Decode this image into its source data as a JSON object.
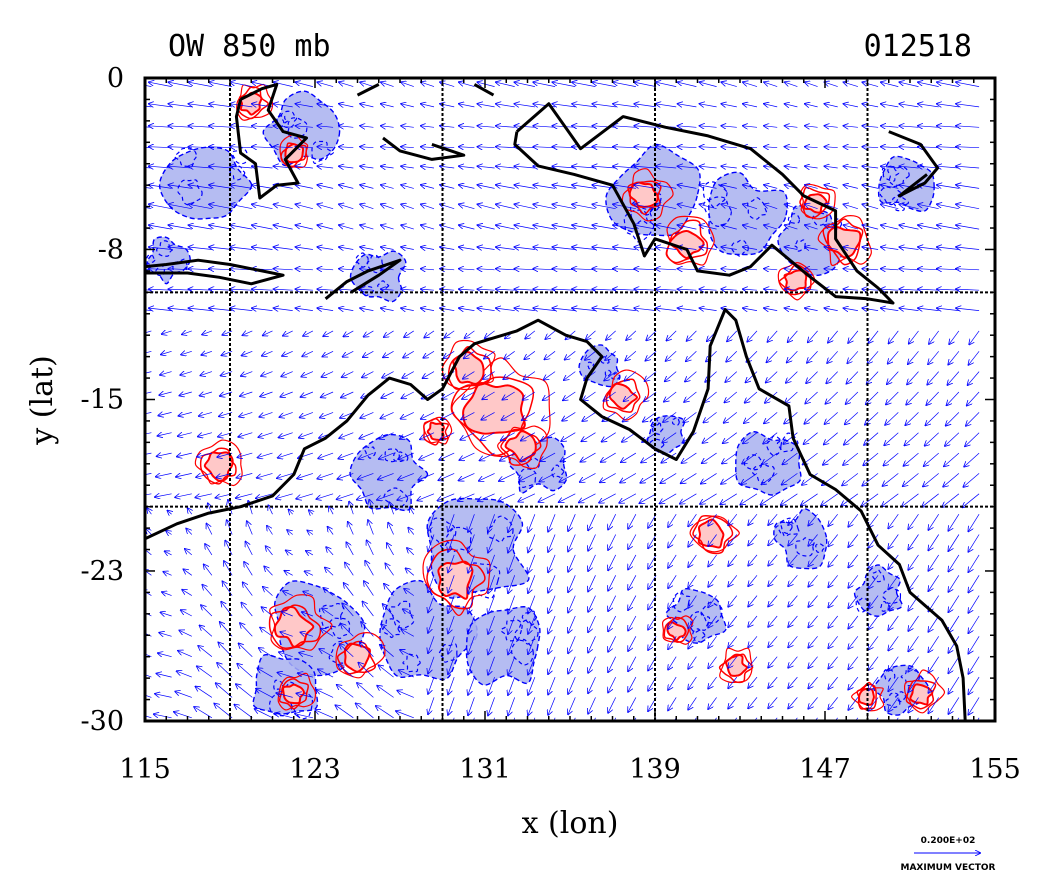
{
  "chart_data": {
    "type": "contour",
    "title_left": "OW 850 mb",
    "title_right": "012518",
    "xlabel": "x (lon)",
    "ylabel": "y (lat)",
    "xlim": [
      115,
      155
    ],
    "ylim": [
      -30,
      0
    ],
    "x_ticks": [
      "115",
      "123",
      "131",
      "139",
      "147",
      "155"
    ],
    "y_ticks": [
      "0",
      "-8",
      "-15",
      "-23",
      "-30"
    ],
    "x_tick_values": [
      115,
      123,
      131,
      139,
      147,
      155
    ],
    "y_tick_values": [
      0,
      -8,
      -15,
      -23,
      -30
    ],
    "grid_lon": [
      119,
      129,
      139,
      149
    ],
    "grid_lat": [
      -10,
      -20
    ],
    "reference_vector": {
      "value_label": "0.200E+02",
      "label": "MAXIMUM VECTOR"
    },
    "colors": {
      "positive_contour": "#ff0000",
      "positive_fill": "#ffc8c8",
      "negative_contour": "#0000ff",
      "negative_fill": "#a8b0f0",
      "vector": "#0000ff",
      "coastline": "#000000"
    },
    "positive_regions": [
      {
        "lon": 131.5,
        "lat": -15.5,
        "r": 1.3
      },
      {
        "lon": 130.2,
        "lat": -13.6,
        "r": 0.7
      },
      {
        "lon": 132.7,
        "lat": -17.2,
        "r": 0.6
      },
      {
        "lon": 129.6,
        "lat": -23.4,
        "r": 0.9
      },
      {
        "lon": 122.0,
        "lat": -25.6,
        "r": 0.8
      },
      {
        "lon": 125.0,
        "lat": -27.0,
        "r": 0.6
      },
      {
        "lon": 122.0,
        "lat": -28.7,
        "r": 0.5
      },
      {
        "lon": 118.5,
        "lat": -18.1,
        "r": 0.6
      },
      {
        "lon": 147.9,
        "lat": -7.6,
        "r": 0.7
      },
      {
        "lon": 145.6,
        "lat": -9.5,
        "r": 0.5
      },
      {
        "lon": 141.7,
        "lat": -21.3,
        "r": 0.6
      },
      {
        "lon": 137.5,
        "lat": -14.9,
        "r": 0.6
      },
      {
        "lon": 142.8,
        "lat": -27.5,
        "r": 0.5
      },
      {
        "lon": 140.0,
        "lat": -25.8,
        "r": 0.4
      },
      {
        "lon": 138.5,
        "lat": -5.5,
        "r": 0.6
      },
      {
        "lon": 140.5,
        "lat": -7.7,
        "r": 0.7
      },
      {
        "lon": 146.5,
        "lat": -5.8,
        "r": 0.5
      },
      {
        "lon": 151.5,
        "lat": -28.7,
        "r": 0.5
      },
      {
        "lon": 149.0,
        "lat": -28.9,
        "r": 0.4
      },
      {
        "lon": 120.0,
        "lat": -1.2,
        "r": 0.5
      },
      {
        "lon": 122.0,
        "lat": -3.5,
        "r": 0.4
      },
      {
        "lon": 128.7,
        "lat": -16.5,
        "r": 0.4
      }
    ],
    "negative_regions": [
      {
        "lon": 130.6,
        "lat": -22.0,
        "r": 2.4
      },
      {
        "lon": 128.0,
        "lat": -26.0,
        "r": 2.2
      },
      {
        "lon": 123.0,
        "lat": -25.5,
        "r": 2.0
      },
      {
        "lon": 121.5,
        "lat": -28.5,
        "r": 1.5
      },
      {
        "lon": 132.0,
        "lat": -26.5,
        "r": 1.8
      },
      {
        "lon": 126.5,
        "lat": -18.5,
        "r": 1.6
      },
      {
        "lon": 133.5,
        "lat": -18.0,
        "r": 1.3
      },
      {
        "lon": 118.0,
        "lat": -5.0,
        "r": 2.0
      },
      {
        "lon": 122.5,
        "lat": -2.5,
        "r": 1.6
      },
      {
        "lon": 126.0,
        "lat": -9.3,
        "r": 1.2
      },
      {
        "lon": 139.0,
        "lat": -5.5,
        "r": 2.0
      },
      {
        "lon": 143.0,
        "lat": -6.5,
        "r": 2.0
      },
      {
        "lon": 146.5,
        "lat": -7.5,
        "r": 1.5
      },
      {
        "lon": 144.5,
        "lat": -18.0,
        "r": 1.5
      },
      {
        "lon": 146.0,
        "lat": -21.5,
        "r": 1.3
      },
      {
        "lon": 141.0,
        "lat": -25.0,
        "r": 1.4
      },
      {
        "lon": 149.5,
        "lat": -24.0,
        "r": 1.1
      },
      {
        "lon": 150.5,
        "lat": -28.5,
        "r": 1.2
      },
      {
        "lon": 151.0,
        "lat": -5.0,
        "r": 1.3
      },
      {
        "lon": 136.5,
        "lat": -13.5,
        "r": 0.9
      },
      {
        "lon": 139.5,
        "lat": -16.5,
        "r": 0.9
      },
      {
        "lon": 116.0,
        "lat": -8.5,
        "r": 1.0
      }
    ],
    "coastline": [
      [
        [
          115.0,
          -21.5
        ],
        [
          116.5,
          -20.8
        ],
        [
          118.0,
          -20.3
        ],
        [
          119.5,
          -20.0
        ],
        [
          121.0,
          -19.5
        ],
        [
          122.0,
          -18.5
        ],
        [
          122.5,
          -17.3
        ],
        [
          123.5,
          -16.8
        ],
        [
          124.5,
          -16.0
        ],
        [
          125.5,
          -14.8
        ],
        [
          126.5,
          -14.0
        ],
        [
          127.5,
          -14.3
        ],
        [
          128.3,
          -15.0
        ],
        [
          129.0,
          -14.5
        ],
        [
          129.8,
          -13.0
        ],
        [
          130.5,
          -12.4
        ],
        [
          131.5,
          -12.1
        ],
        [
          132.5,
          -11.8
        ],
        [
          133.5,
          -11.3
        ],
        [
          134.8,
          -12.0
        ],
        [
          135.8,
          -12.3
        ],
        [
          136.5,
          -13.0
        ],
        [
          135.8,
          -14.0
        ],
        [
          135.5,
          -15.0
        ],
        [
          136.5,
          -15.8
        ],
        [
          137.8,
          -16.4
        ],
        [
          139.0,
          -17.3
        ],
        [
          140.0,
          -17.8
        ],
        [
          140.8,
          -16.5
        ],
        [
          141.5,
          -14.5
        ],
        [
          141.6,
          -12.5
        ],
        [
          142.3,
          -10.8
        ],
        [
          142.8,
          -11.3
        ],
        [
          143.3,
          -13.0
        ],
        [
          143.9,
          -14.5
        ],
        [
          145.3,
          -15.3
        ],
        [
          145.5,
          -16.8
        ],
        [
          146.3,
          -18.5
        ],
        [
          147.5,
          -19.2
        ],
        [
          148.7,
          -20.2
        ],
        [
          149.5,
          -21.8
        ],
        [
          150.5,
          -22.7
        ],
        [
          151.0,
          -24.0
        ],
        [
          152.5,
          -25.3
        ],
        [
          153.2,
          -26.5
        ],
        [
          153.5,
          -28.0
        ],
        [
          153.6,
          -30.0
        ]
      ],
      [
        [
          132.5,
          -2.5
        ],
        [
          134.0,
          -1.2
        ],
        [
          135.5,
          -3.3
        ],
        [
          137.5,
          -1.8
        ],
        [
          139.5,
          -2.3
        ],
        [
          141.5,
          -2.7
        ],
        [
          143.5,
          -3.3
        ],
        [
          145.0,
          -4.5
        ],
        [
          146.0,
          -5.5
        ],
        [
          147.5,
          -6.2
        ],
        [
          147.5,
          -7.5
        ],
        [
          148.5,
          -9.0
        ],
        [
          149.5,
          -9.8
        ],
        [
          150.2,
          -10.5
        ],
        [
          149.0,
          -10.3
        ],
        [
          147.5,
          -10.2
        ],
        [
          146.2,
          -9.2
        ],
        [
          144.5,
          -7.8
        ],
        [
          143.5,
          -8.8
        ],
        [
          142.5,
          -9.2
        ],
        [
          141.0,
          -9.0
        ],
        [
          140.5,
          -8.0
        ],
        [
          139.0,
          -7.5
        ],
        [
          138.5,
          -8.3
        ],
        [
          138.0,
          -6.8
        ],
        [
          137.0,
          -5.0
        ],
        [
          135.2,
          -4.5
        ],
        [
          133.5,
          -4.1
        ],
        [
          132.4,
          -3.1
        ],
        [
          132.5,
          -2.5
        ]
      ],
      [
        [
          150.0,
          -2.5
        ],
        [
          151.5,
          -3.1
        ],
        [
          152.3,
          -4.2
        ],
        [
          151.7,
          -4.9
        ],
        [
          150.5,
          -5.5
        ],
        [
          151.8,
          -4.5
        ]
      ],
      [
        [
          119.5,
          -1.0
        ],
        [
          120.5,
          -0.5
        ],
        [
          121.2,
          -0.3
        ],
        [
          120.8,
          -1.5
        ],
        [
          121.5,
          -2.5
        ],
        [
          122.6,
          -2.8
        ],
        [
          121.6,
          -3.8
        ],
        [
          122.2,
          -4.9
        ],
        [
          121.2,
          -5.0
        ],
        [
          120.4,
          -5.6
        ],
        [
          120.2,
          -4.0
        ],
        [
          119.5,
          -3.5
        ],
        [
          119.3,
          -1.8
        ],
        [
          119.5,
          -1.0
        ]
      ],
      [
        [
          115.0,
          -8.8
        ],
        [
          116.0,
          -8.7
        ],
        [
          117.5,
          -8.5
        ],
        [
          119.0,
          -8.7
        ],
        [
          120.5,
          -9.0
        ],
        [
          121.5,
          -9.2
        ],
        [
          120.0,
          -9.6
        ],
        [
          118.5,
          -9.3
        ],
        [
          117.0,
          -9.1
        ],
        [
          115.0,
          -9.1
        ]
      ],
      [
        [
          123.5,
          -10.3
        ],
        [
          124.5,
          -9.5
        ],
        [
          125.5,
          -9.0
        ],
        [
          127.0,
          -8.5
        ],
        [
          126.0,
          -9.2
        ],
        [
          124.7,
          -10.0
        ]
      ],
      [
        [
          126.2,
          -2.8
        ],
        [
          127.0,
          -3.4
        ],
        [
          128.5,
          -3.8
        ],
        [
          130.0,
          -3.6
        ],
        [
          128.5,
          -3.1
        ]
      ],
      [
        [
          130.5,
          -0.3
        ],
        [
          131.4,
          -0.8
        ]
      ],
      [
        [
          125.0,
          -0.8
        ],
        [
          126.0,
          -0.3
        ]
      ]
    ]
  }
}
